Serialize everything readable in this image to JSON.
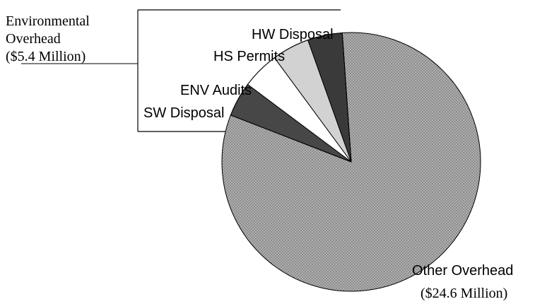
{
  "chart_data": {
    "type": "pie",
    "categories": [
      "Other Overhead",
      "SW Disposal",
      "ENV Audits",
      "HS Permits",
      "HW Disposal"
    ],
    "values": [
      24.6,
      1.3,
      1.4,
      1.4,
      1.3
    ],
    "value_labels": [
      "($24.6 Million)"
    ],
    "colors": [
      "#a8a8a8",
      "#474747",
      "#ffffff",
      "#d2d2d2",
      "#3a3a3a"
    ],
    "group": {
      "name_lines": [
        "Environmental",
        "Overhead"
      ],
      "value": 5.4,
      "value_label": "($5.4 Million)"
    }
  }
}
